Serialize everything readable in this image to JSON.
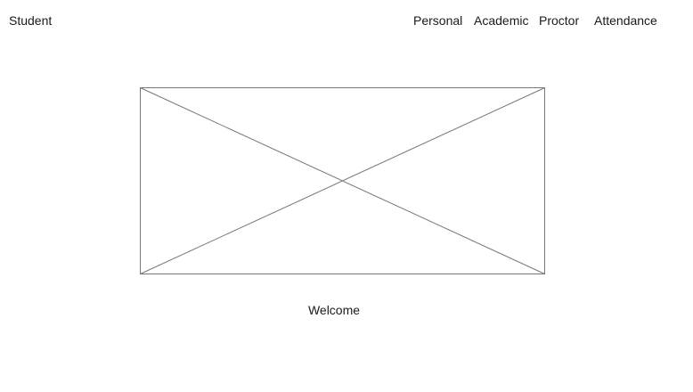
{
  "header": {
    "brand": "Student",
    "nav": {
      "personal": "Personal",
      "academic": "Academic",
      "proctor": "Proctor",
      "attendance": "Attendance"
    }
  },
  "main": {
    "image_icon": "image-placeholder-icon",
    "welcome": "Welcome"
  },
  "colors": {
    "text": "#1a1a1a",
    "placeholder_stroke": "#777777",
    "background": "#ffffff"
  }
}
